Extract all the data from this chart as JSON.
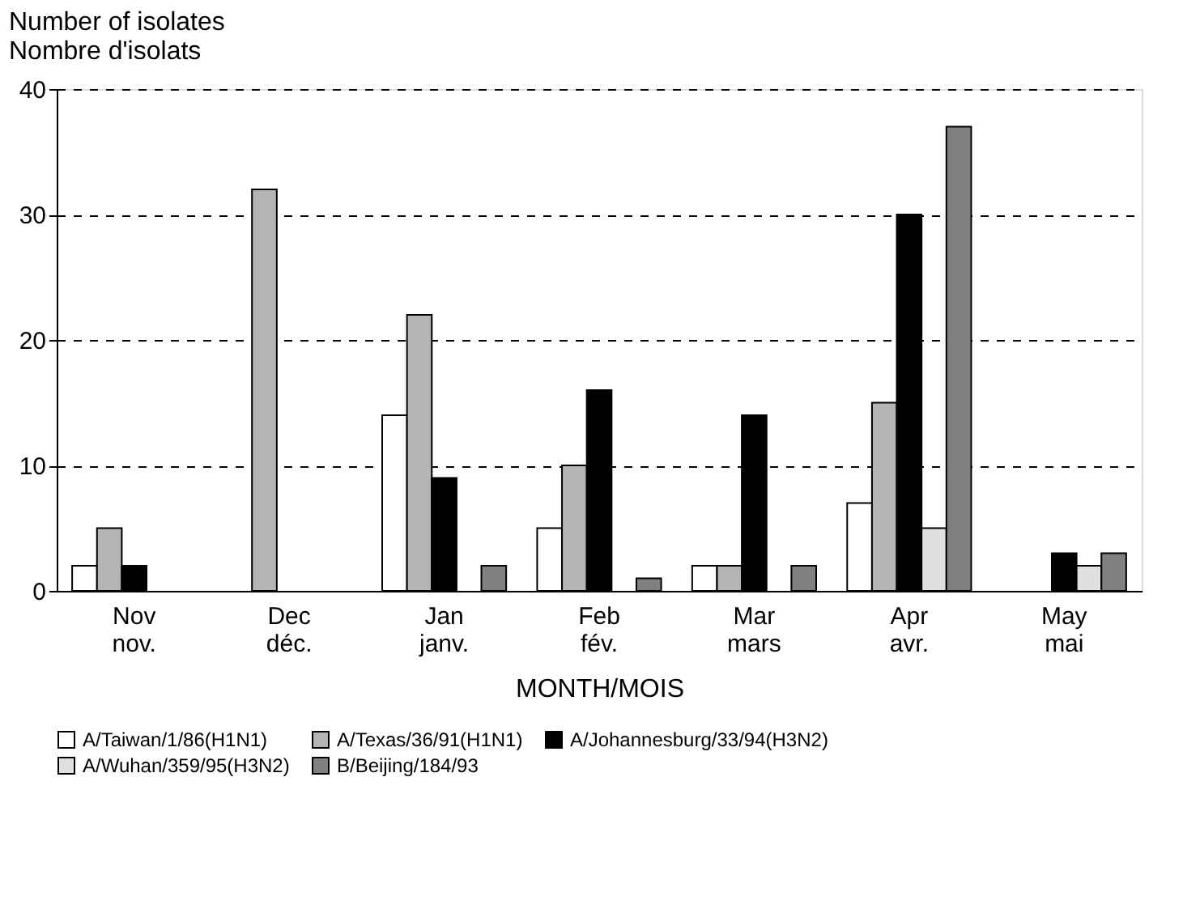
{
  "chart_data": {
    "type": "bar",
    "xlabel": "MONTH/MOIS",
    "ylabel": "Number of isolates\nNombre d'isolats",
    "categories": [
      "Nov\nnov.",
      "Dec\ndéc.",
      "Jan\njanv.",
      "Feb\nfév.",
      "Mar\nmars",
      "Apr\navr.",
      "May\nmai"
    ],
    "series": [
      {
        "name": "A/Taiwan/1/86(H1N1)",
        "color": "#ffffff",
        "values": [
          2,
          0,
          14,
          5,
          2,
          7,
          0
        ]
      },
      {
        "name": "A/Texas/36/91(H1N1)",
        "color": "#b4b4b4",
        "values": [
          5,
          32,
          22,
          10,
          2,
          15,
          0
        ]
      },
      {
        "name": "A/Johannesburg/33/94(H3N2)",
        "color": "#000000",
        "values": [
          2,
          0,
          9,
          16,
          14,
          30,
          3
        ]
      },
      {
        "name": "A/Wuhan/359/95(H3N2)",
        "color": "#e0e0e0",
        "values": [
          0,
          0,
          0,
          0,
          0,
          5,
          2
        ]
      },
      {
        "name": "B/Beijing/184/93",
        "color": "#808080",
        "values": [
          0,
          0,
          2,
          1,
          2,
          37,
          3
        ]
      }
    ],
    "ylim": [
      0,
      40
    ],
    "yticks": [
      0,
      10,
      20,
      30,
      40
    ],
    "grid": "y",
    "legend": "bottom"
  }
}
